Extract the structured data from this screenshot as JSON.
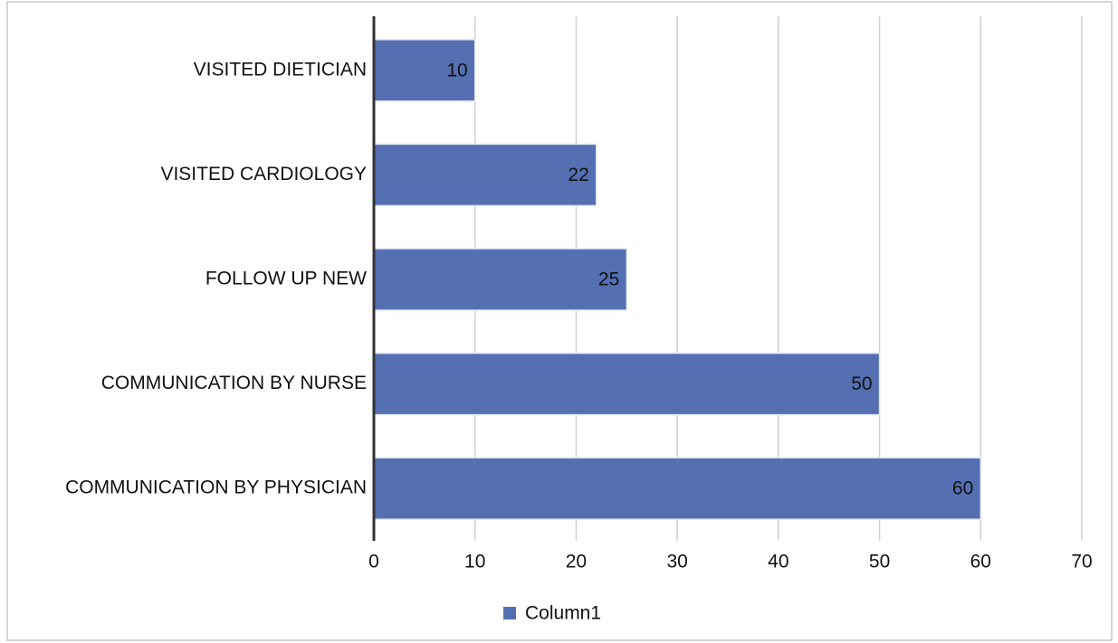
{
  "chart_data": {
    "type": "bar",
    "orientation": "horizontal",
    "categories": [
      "VISITED DIETICIAN",
      "VISITED CARDIOLOGY",
      "FOLLOW UP NEW",
      "COMMUNICATION BY NURSE",
      "COMMUNICATION BY PHYSICIAN"
    ],
    "series": [
      {
        "name": "Column1",
        "color": "#5470b3",
        "values": [
          10,
          22,
          25,
          50,
          60
        ]
      }
    ],
    "xlim": [
      0,
      70
    ],
    "xticks": [
      0,
      10,
      20,
      30,
      40,
      50,
      60,
      70
    ],
    "grid": true,
    "legend": "bottom"
  }
}
